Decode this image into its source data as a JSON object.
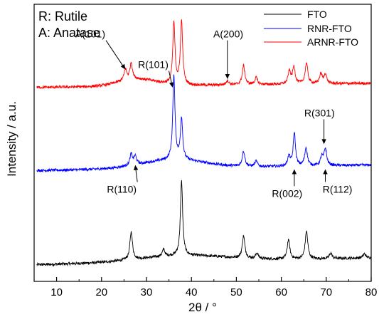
{
  "chart_data": {
    "type": "line",
    "title": "",
    "xlabel": "2θ / °",
    "ylabel": "Intensity / a.u.",
    "xlim": [
      5,
      80
    ],
    "xticks": [
      10,
      20,
      30,
      40,
      50,
      60,
      70,
      80
    ],
    "xtick_labels": [
      "10",
      "20",
      "30",
      "40",
      "50",
      "60",
      "70",
      "80"
    ],
    "ylim": [
      0,
      100
    ],
    "grid": false,
    "legend_placement": "top-right",
    "phase_key": [
      "R: Rutile",
      "A: Anatase"
    ],
    "colors": {
      "FTO": "#000000",
      "RNR-FTO": "#0000ff",
      "ARNR-FTO": "#ff0000",
      "axis": "#000000"
    },
    "series": [
      {
        "name": "FTO",
        "baseline": 6,
        "baseline_end": 8.5,
        "hump": {
          "center": 38,
          "width": 14,
          "height": 2.2
        },
        "noise": 0.5,
        "peaks": [
          {
            "x": 26.6,
            "h": 10.0,
            "w": 0.35
          },
          {
            "x": 33.8,
            "h": 2.5,
            "w": 0.35
          },
          {
            "x": 37.8,
            "h": 27.0,
            "w": 0.3
          },
          {
            "x": 51.6,
            "h": 8.0,
            "w": 0.35
          },
          {
            "x": 54.6,
            "h": 2.0,
            "w": 0.35
          },
          {
            "x": 61.6,
            "h": 7.0,
            "w": 0.35
          },
          {
            "x": 65.6,
            "h": 10.0,
            "w": 0.35
          },
          {
            "x": 71.0,
            "h": 2.0,
            "w": 0.35
          },
          {
            "x": 78.5,
            "h": 1.5,
            "w": 0.35
          }
        ]
      },
      {
        "name": "RNR-FTO",
        "baseline": 40,
        "baseline_end": 42,
        "hump": {
          "center": 36,
          "width": 10,
          "height": 3.0
        },
        "noise": 0.5,
        "peaks": [
          {
            "x": 26.6,
            "h": 4.0,
            "w": 0.35
          },
          {
            "x": 27.5,
            "h": 3.0,
            "w": 0.35
          },
          {
            "x": 36.1,
            "h": 30.0,
            "w": 0.3
          },
          {
            "x": 37.8,
            "h": 15.0,
            "w": 0.3
          },
          {
            "x": 51.6,
            "h": 5.5,
            "w": 0.35
          },
          {
            "x": 54.4,
            "h": 2.0,
            "w": 0.35
          },
          {
            "x": 61.7,
            "h": 3.5,
            "w": 0.35
          },
          {
            "x": 62.9,
            "h": 12.0,
            "w": 0.3
          },
          {
            "x": 65.5,
            "h": 6.5,
            "w": 0.35
          },
          {
            "x": 69.0,
            "h": 3.0,
            "w": 0.35
          },
          {
            "x": 69.8,
            "h": 6.0,
            "w": 0.35
          }
        ]
      },
      {
        "name": "ARNR-FTO",
        "baseline": 70,
        "baseline_end": 71.5,
        "hump": {
          "center": 28,
          "width": 6,
          "height": 2.5
        },
        "noise": 0.5,
        "peaks": [
          {
            "x": 25.3,
            "h": 4.0,
            "w": 0.35
          },
          {
            "x": 26.6,
            "h": 6.0,
            "w": 0.35
          },
          {
            "x": 36.1,
            "h": 22.0,
            "w": 0.3
          },
          {
            "x": 37.8,
            "h": 23.0,
            "w": 0.3
          },
          {
            "x": 48.0,
            "h": 1.5,
            "w": 0.4
          },
          {
            "x": 51.6,
            "h": 7.0,
            "w": 0.35
          },
          {
            "x": 54.4,
            "h": 2.5,
            "w": 0.35
          },
          {
            "x": 61.8,
            "h": 4.5,
            "w": 0.35
          },
          {
            "x": 62.8,
            "h": 6.0,
            "w": 0.35
          },
          {
            "x": 65.6,
            "h": 7.5,
            "w": 0.35
          },
          {
            "x": 68.8,
            "h": 3.5,
            "w": 0.35
          },
          {
            "x": 69.8,
            "h": 3.5,
            "w": 0.35
          }
        ]
      }
    ],
    "annotations": [
      {
        "text": "A(101)",
        "x": 17.5,
        "y": 88,
        "arrow_to": [
          25.3,
          76.5
        ]
      },
      {
        "text": "A(200)",
        "x": 48.2,
        "y": 88,
        "arrow_to": [
          48.0,
          73
        ]
      },
      {
        "text": "R(101)",
        "x": 31.5,
        "y": 77,
        "arrow_to": [
          35.8,
          70
        ]
      },
      {
        "text": "R(301)",
        "x": 68.5,
        "y": 59.5,
        "arrow_to": [
          69.5,
          49.5
        ]
      },
      {
        "text": "R(110)",
        "x": 24.5,
        "y": 32,
        "arrow_to": [
          27.5,
          42
        ]
      },
      {
        "text": "R(002)",
        "x": 61.3,
        "y": 30.5,
        "arrow_to": [
          62.9,
          40.5
        ]
      },
      {
        "text": "R(112)",
        "x": 72.5,
        "y": 32,
        "arrow_to": [
          69.8,
          40.5
        ]
      }
    ]
  }
}
